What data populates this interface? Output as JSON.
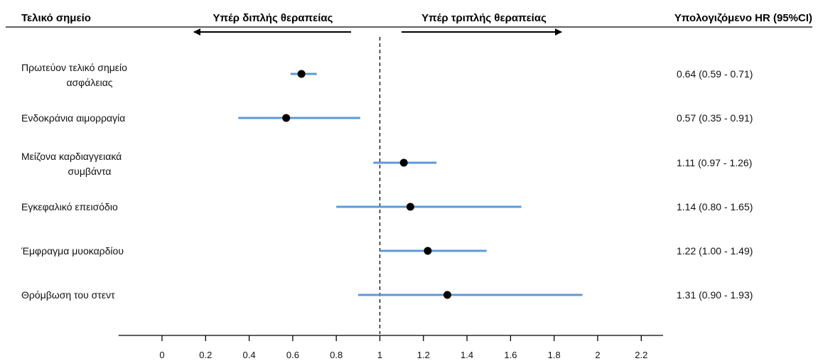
{
  "chart_data": {
    "type": "forest",
    "headers": {
      "endpoint": "Τελικό σημείο",
      "favors_dual": "Υπέρ διπλής θεραπείας",
      "favors_triple": "Υπέρ τριπλής θεραπείας",
      "estimate": "Υπολογιζόμενο HR (95%CI)"
    },
    "reference_value": 1,
    "xlim": [
      -0.2,
      2.3
    ],
    "x_ticks": [
      0,
      0.2,
      0.4,
      0.6,
      0.8,
      1,
      1.2,
      1.4,
      1.6,
      1.8,
      2,
      2.2
    ],
    "x_tick_labels": [
      "0",
      "0.2",
      "0.4",
      "0.6",
      "0.8",
      "1",
      "1.2",
      "1.4",
      "1.6",
      "1.8",
      "2",
      "2.2"
    ],
    "rows": [
      {
        "label_lines": [
          "Πρωτεύον τελικό σημείο",
          "ασφάλειας"
        ],
        "hr": 0.64,
        "lo": 0.59,
        "hi": 0.71,
        "text": "0.64 (0.59 - 0.71)"
      },
      {
        "label_lines": [
          "Ενδοκράνια αιμορραγία"
        ],
        "hr": 0.57,
        "lo": 0.35,
        "hi": 0.91,
        "text": "0.57 (0.35 - 0.91)"
      },
      {
        "label_lines": [
          "Μείζονα καρδιαγγειακά",
          "συμβάντα"
        ],
        "hr": 1.11,
        "lo": 0.97,
        "hi": 1.26,
        "text": "1.11 (0.97 - 1.26)"
      },
      {
        "label_lines": [
          "Εγκεφαλικό επεισόδιο"
        ],
        "hr": 1.14,
        "lo": 0.8,
        "hi": 1.65,
        "text": "1.14 (0.80 - 1.65)"
      },
      {
        "label_lines": [
          "Έμφραγμα μυοκαρδίου"
        ],
        "hr": 1.22,
        "lo": 1.0,
        "hi": 1.49,
        "text": "1.22 (1.00 - 1.49)"
      },
      {
        "label_lines": [
          "Θρόμβωση του στεντ"
        ],
        "hr": 1.31,
        "lo": 0.9,
        "hi": 1.93,
        "text": "1.31 (0.90 - 1.93)"
      }
    ],
    "colors": {
      "ci_line": "#5b9bd5",
      "point": "#000000",
      "text": "#111111"
    }
  }
}
